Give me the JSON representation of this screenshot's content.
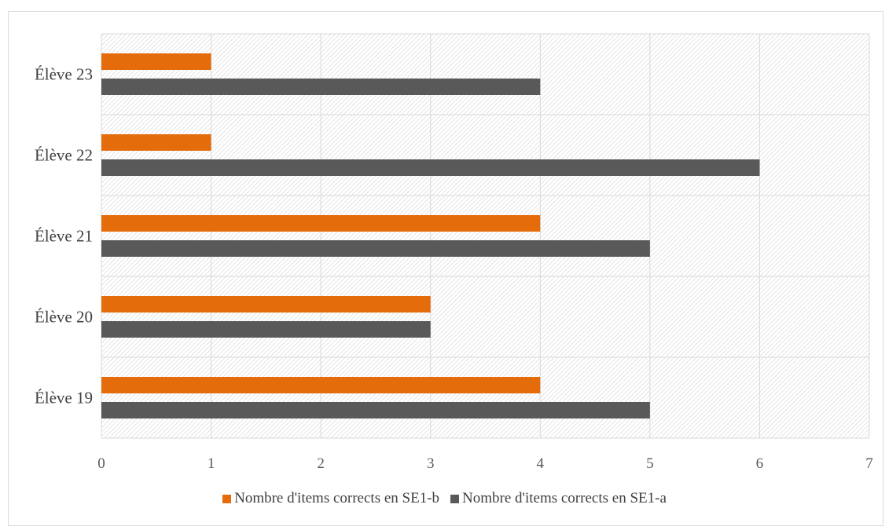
{
  "chart_data": {
    "type": "bar",
    "orientation": "horizontal",
    "categories": [
      "Élève 19",
      "Élève 20",
      "Élève 21",
      "Élève 22",
      "Élève 23"
    ],
    "series": [
      {
        "name": "Nombre d'items corrects en SE1-b",
        "color": "#e46c0a",
        "values": [
          4,
          3,
          4,
          1,
          1
        ]
      },
      {
        "name": "Nombre d'items corrects en SE1-a",
        "color": "#595959",
        "values": [
          5,
          3,
          5,
          6,
          4
        ]
      }
    ],
    "xlim": [
      0,
      7
    ],
    "xticks": [
      "0",
      "1",
      "2",
      "3",
      "4",
      "5",
      "6",
      "7"
    ],
    "title": "",
    "xlabel": "",
    "ylabel": "",
    "grid": true,
    "legend_position": "bottom"
  }
}
